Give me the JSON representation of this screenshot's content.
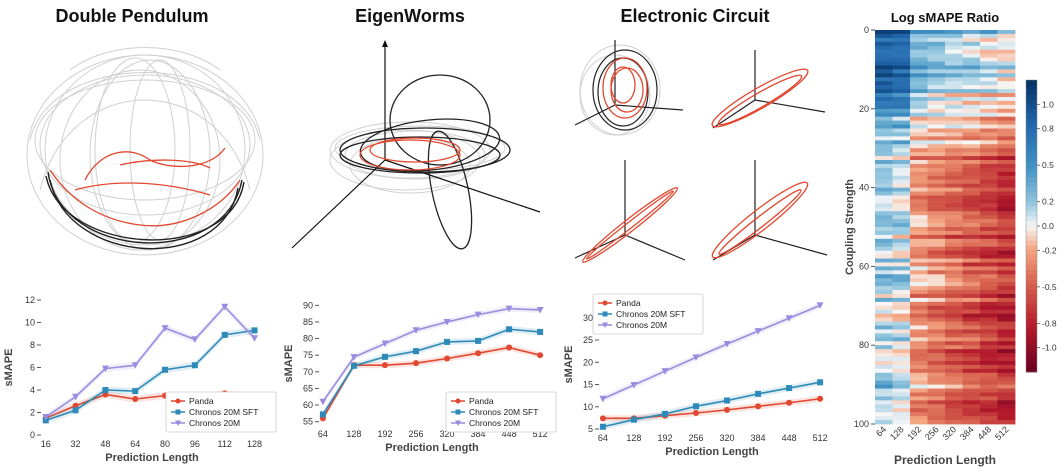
{
  "titles": {
    "p1": "Double Pendulum",
    "p2": "EigenWorms",
    "p3": "Electronic Circuit",
    "p4": "Log sMAPE Ratio"
  },
  "colors": {
    "panda": "#e2472f",
    "sft": "#2e8ab8",
    "c20m": "#9b8ce0",
    "gray_traj": "#cfcfcf",
    "black_traj": "#222222"
  },
  "chart_data": [
    {
      "type": "line",
      "panel": "Double Pendulum",
      "xlabel": "Prediction Length",
      "ylabel": "sMAPE",
      "x": [
        16,
        32,
        48,
        64,
        80,
        96,
        112,
        128
      ],
      "xlim": [
        14,
        132
      ],
      "ylim": [
        0,
        12
      ],
      "yticks": [
        0,
        2,
        4,
        6,
        8,
        10,
        12
      ],
      "legend": "bottom-right",
      "series": [
        {
          "name": "Panda",
          "marker": "circle",
          "values": [
            1.5,
            2.6,
            3.6,
            3.2,
            3.5,
            3.1,
            3.7,
            3.3
          ]
        },
        {
          "name": "Chronos 20M SFT",
          "marker": "square",
          "values": [
            1.3,
            2.2,
            4.0,
            3.9,
            5.8,
            6.2,
            8.9,
            9.3
          ]
        },
        {
          "name": "Chronos 20M",
          "marker": "triangle",
          "values": [
            1.6,
            3.4,
            5.9,
            6.2,
            9.5,
            8.5,
            11.4,
            8.6
          ]
        }
      ]
    },
    {
      "type": "line",
      "panel": "EigenWorms",
      "xlabel": "Prediction Length",
      "ylabel": "sMAPE",
      "x": [
        64,
        128,
        192,
        256,
        320,
        384,
        448,
        512
      ],
      "xlim": [
        58,
        520
      ],
      "ylim": [
        54,
        91
      ],
      "yticks": [
        55,
        60,
        65,
        70,
        75,
        80,
        85,
        90
      ],
      "legend": "bottom-right",
      "series": [
        {
          "name": "Panda",
          "marker": "circle",
          "values": [
            56.0,
            72.0,
            72.0,
            72.6,
            74.0,
            75.6,
            77.3,
            75.0
          ]
        },
        {
          "name": "Chronos 20M SFT",
          "marker": "square",
          "values": [
            57.2,
            71.8,
            74.5,
            76.2,
            79.0,
            79.3,
            82.8,
            82.0
          ]
        },
        {
          "name": "Chronos 20M",
          "marker": "triangle",
          "values": [
            61.0,
            74.4,
            78.5,
            82.5,
            85.0,
            87.2,
            89.0,
            88.6
          ]
        }
      ]
    },
    {
      "type": "line",
      "panel": "Electronic Circuit",
      "xlabel": "Prediction Length",
      "ylabel": "sMAPE",
      "x": [
        64,
        128,
        192,
        256,
        320,
        384,
        448,
        512
      ],
      "xlim": [
        58,
        520
      ],
      "ylim": [
        5,
        34
      ],
      "yticks": [
        5,
        10,
        15,
        20,
        25,
        30
      ],
      "legend": "top-left",
      "series": [
        {
          "name": "Panda",
          "marker": "circle",
          "values": [
            7.4,
            7.4,
            8.0,
            8.6,
            9.3,
            10.1,
            10.9,
            11.8
          ]
        },
        {
          "name": "Chronos 20M SFT",
          "marker": "square",
          "values": [
            5.5,
            7.1,
            8.4,
            10.1,
            11.4,
            12.9,
            14.2,
            15.5
          ]
        },
        {
          "name": "Chronos 20M",
          "marker": "triangle",
          "values": [
            11.8,
            14.9,
            18.0,
            21.1,
            24.1,
            27.0,
            29.9,
            32.8
          ]
        }
      ]
    },
    {
      "type": "heatmap",
      "panel": "Log sMAPE Ratio",
      "xlabel": "Prediction Length",
      "ylabel": "Coupling Strength",
      "xticks": [
        "64",
        "128",
        "192",
        "256",
        "320",
        "384",
        "448",
        "512"
      ],
      "yticks": [
        0,
        20,
        40,
        60,
        80,
        100
      ],
      "colorbar_ticks": [
        1.0,
        0.8,
        0.5,
        0.2,
        0.0,
        -0.2,
        -0.5,
        -0.8,
        -1.0
      ],
      "colormap": "RdBu",
      "clim": [
        -1.2,
        1.2
      ]
    }
  ]
}
